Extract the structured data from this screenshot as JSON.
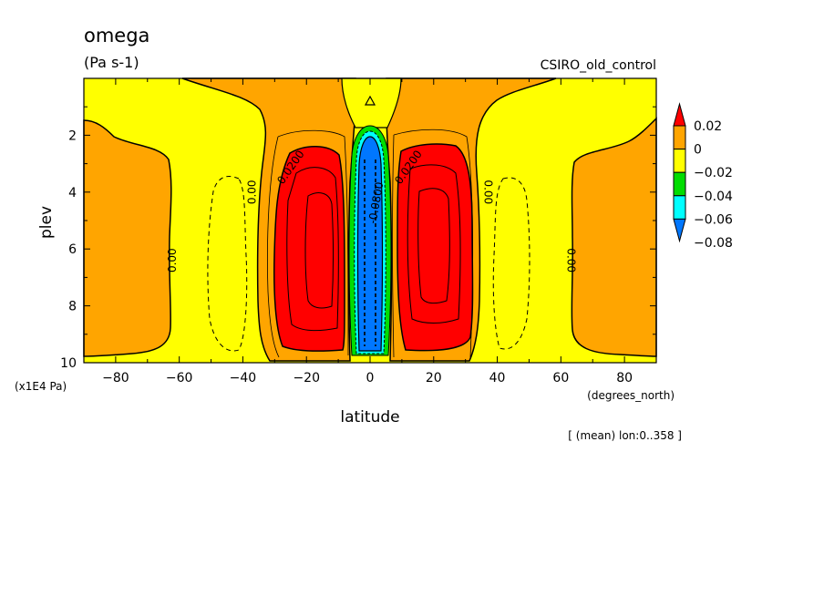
{
  "chart_data": {
    "type": "heatmap",
    "title": "omega",
    "units": "(Pa s-1)",
    "dataset": "CSIRO_old_control",
    "xlabel": "latitude",
    "xunits": "(degrees_north)",
    "ylabel": "plev",
    "yunits": "(x1E4 Pa)",
    "note": "[ (mean) lon:0..358 ]",
    "xlim": [
      -90,
      90
    ],
    "ylim": [
      10,
      0
    ],
    "x_ticks": [
      -80,
      -60,
      -40,
      -20,
      0,
      20,
      40,
      60,
      80
    ],
    "y_ticks": [
      2,
      4,
      6,
      8,
      10
    ],
    "colorbar": {
      "levels": [
        "0.02",
        "0",
        "−0.02",
        "−0.04",
        "−0.06",
        "−0.08"
      ],
      "colors": [
        "#ff0000",
        "#ffa500",
        "#ffff00",
        "#00dd00",
        "#00ffff",
        "#0077ff"
      ]
    },
    "contour_labels": [
      {
        "text": "0.00",
        "lat": -61,
        "plev": 6.4,
        "rotate": -90
      },
      {
        "text": "0.00",
        "lat": -36,
        "plev": 4.0,
        "rotate": -90
      },
      {
        "text": "0.0200",
        "lat": -24,
        "plev": 3.2,
        "rotate": -55
      },
      {
        "text": "0.0200",
        "lat": 13,
        "plev": 3.2,
        "rotate": -55
      },
      {
        "text": "0.00",
        "lat": 36,
        "plev": 4.0,
        "rotate": 90
      },
      {
        "text": "0.00",
        "lat": 62,
        "plev": 6.4,
        "rotate": 90
      },
      {
        "text": "-0.0800",
        "lat": 3,
        "plev": 4.4,
        "rotate": -80
      }
    ]
  }
}
